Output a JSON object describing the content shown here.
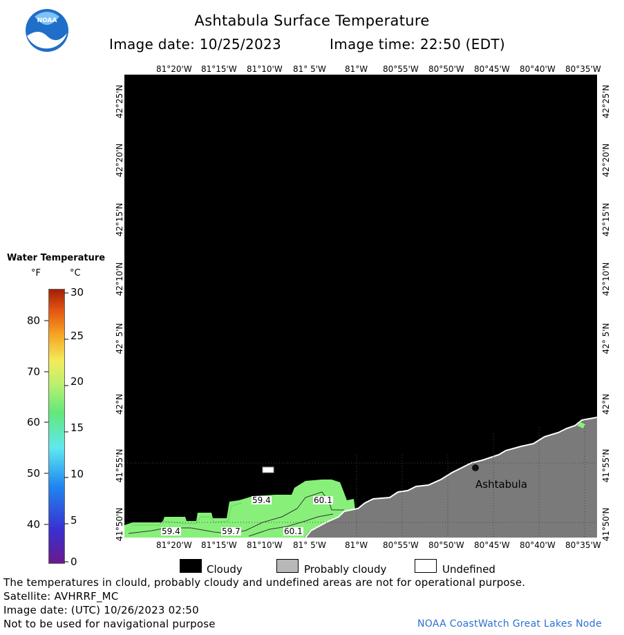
{
  "header": {
    "title": "Ashtabula Surface Temperature",
    "image_date": "Image date: 10/25/2023",
    "image_time": "Image time: 22:50 (EDT)"
  },
  "logo": {
    "text": "NOAA",
    "icon": "noaa-logo"
  },
  "map": {
    "lon_ticks_top": [
      "81°20'W",
      "81°15'W",
      "81°10'W",
      "81° 5'W",
      "81°W",
      "80°55'W",
      "80°50'W",
      "80°45'W",
      "80°40'W",
      "80°35'W"
    ],
    "lon_ticks_bottom": [
      "81°20'W",
      "81°15'W",
      "81°10'W",
      "81° 5'W",
      "81°W",
      "80°55'W",
      "80°50'W",
      "80°45'W",
      "80°40'W",
      "80°35'W"
    ],
    "lat_ticks": [
      "42°25'N",
      "42°20'N",
      "42°15'N",
      "42°10'N",
      "42° 5'N",
      "42°N",
      "41°55'N",
      "41°50'N"
    ],
    "place_label": "Ashtabula",
    "contour_labels": [
      "59.4",
      "60.1",
      "59.4",
      "59.7",
      "60.1"
    ],
    "colors": {
      "cloudy": "#000000",
      "land": "#7a7a7a",
      "water": "#88f07a"
    }
  },
  "legend": {
    "title": "Water Temperature",
    "unit_f": "°F",
    "unit_c": "°C",
    "f_values": [
      "80",
      "70",
      "60",
      "50",
      "40"
    ],
    "c_values": [
      "30",
      "25",
      "20",
      "15",
      "10",
      "5",
      "0"
    ]
  },
  "key": {
    "cloudy": "Cloudy",
    "probably_cloudy": "Probably cloudy",
    "undefined": "Undefined",
    "colors": {
      "cloudy": "#000000",
      "probably_cloudy": "#b8b8b8",
      "undefined": "#ffffff"
    }
  },
  "footer": {
    "note": "The temperatures in clould, probably cloudy and undefined areas are not for operational purpose.",
    "satellite": "Satellite: AVHRRF_MC",
    "utc_date": "Image date: (UTC) 10/26/2023  02:50",
    "nav_warning": "Not to be used for navigational purpose",
    "credit": "NOAA CoastWatch Great Lakes Node"
  }
}
